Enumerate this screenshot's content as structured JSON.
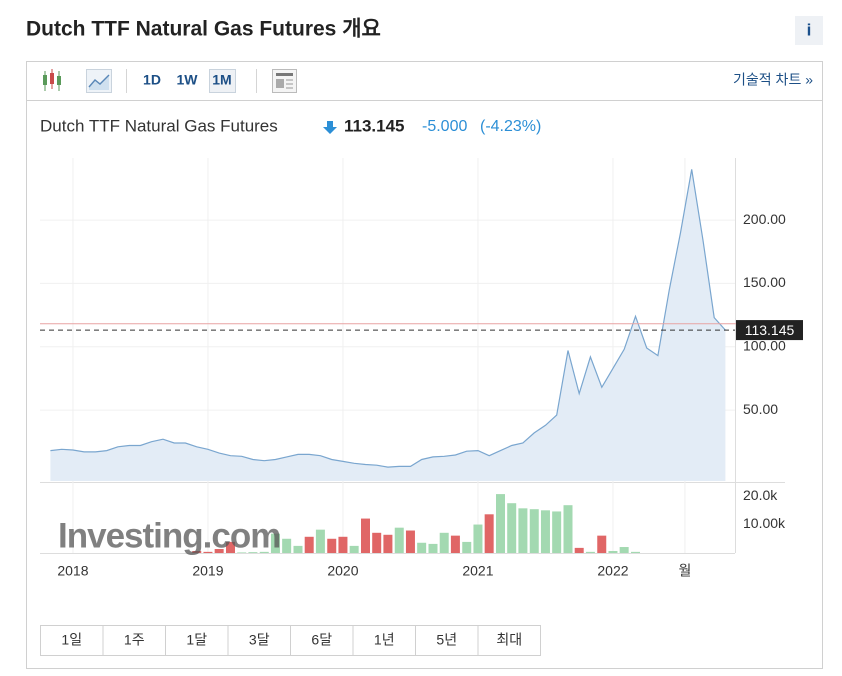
{
  "header": {
    "title": "Dutch TTF Natural Gas Futures 개요",
    "info": "i"
  },
  "toolbar": {
    "intervals": [
      "1D",
      "1W",
      "1M"
    ],
    "active_interval": 2,
    "link": "기술적 차트 »"
  },
  "quote": {
    "name": "Dutch TTF Natural Gas Futures",
    "price": 113.145,
    "change": "-5.000",
    "change_pct": "(-4.23%)"
  },
  "watermark": "Investing.com",
  "chart_data": {
    "type": "line",
    "x": [
      2017.833,
      2017.917,
      2018,
      2018.083,
      2018.167,
      2018.25,
      2018.333,
      2018.417,
      2018.5,
      2018.583,
      2018.667,
      2018.75,
      2018.833,
      2018.917,
      2019,
      2019.083,
      2019.167,
      2019.25,
      2019.333,
      2019.417,
      2019.5,
      2019.583,
      2019.667,
      2019.75,
      2019.833,
      2019.917,
      2020,
      2020.083,
      2020.167,
      2020.25,
      2020.333,
      2020.417,
      2020.5,
      2020.583,
      2020.667,
      2020.75,
      2020.833,
      2020.917,
      2021,
      2021.083,
      2021.167,
      2021.25,
      2021.333,
      2021.417,
      2021.5,
      2021.583,
      2021.667,
      2021.75,
      2021.833,
      2021.917,
      2022,
      2022.083,
      2022.167,
      2022.25,
      2022.333,
      2022.417,
      2022.5,
      2022.583,
      2022.667,
      2022.75,
      2022.833
    ],
    "xlim": [
      2017.756,
      2022.904
    ],
    "xticks": [
      2018,
      2019,
      2020,
      2021,
      2022,
      {
        "value": 2022.533,
        "label": "월"
      }
    ],
    "ylim": [
      -6,
      249
    ],
    "yticks": [
      {
        "value": 50,
        "label": "50.00"
      },
      {
        "value": 100,
        "label": "100.00"
      },
      {
        "value": 150,
        "label": "150.00"
      },
      {
        "value": 200,
        "label": "200.00"
      }
    ],
    "grid": true,
    "series": [
      {
        "color": "#7aa6cf",
        "fill": "#e3ecf6",
        "values": [
          18,
          19,
          18.5,
          17,
          17,
          18,
          21,
          22,
          22,
          25,
          27,
          24,
          24,
          21,
          19,
          16,
          14,
          13.5,
          11,
          10,
          11,
          13,
          15,
          15,
          14,
          11,
          9.5,
          8,
          7,
          6.5,
          5,
          5.5,
          5.5,
          11,
          13,
          13.5,
          14.5,
          17.5,
          18,
          14,
          18,
          22,
          24,
          32,
          38,
          46,
          97,
          63,
          92,
          68,
          83,
          98,
          124,
          99,
          93,
          145,
          190,
          240,
          184,
          123,
          113.145
        ]
      }
    ],
    "reference_line": {
      "value": 118.145,
      "color": "#e8a3a3"
    },
    "volume": {
      "type": "bar",
      "ylim": [
        0,
        24600
      ],
      "yticks": [
        {
          "value": 10000,
          "label": "10.00k"
        },
        {
          "value": 20000,
          "label": "20.0k"
        }
      ],
      "values": [
        null,
        null,
        null,
        null,
        null,
        null,
        null,
        null,
        null,
        null,
        null,
        null,
        null,
        700,
        400,
        1400,
        3900,
        200,
        300,
        400,
        6800,
        5000,
        2500,
        5700,
        8200,
        5000,
        5700,
        2500,
        12100,
        7100,
        6400,
        8900,
        7900,
        3600,
        3200,
        7100,
        6100,
        3900,
        10000,
        13600,
        20700,
        17500,
        15700,
        15400,
        15000,
        14600,
        16800,
        1800,
        400,
        6100,
        700,
        2100,
        400,
        null,
        null,
        null,
        null,
        null,
        null,
        null,
        null
      ],
      "colors": [
        null,
        null,
        null,
        null,
        null,
        null,
        null,
        null,
        null,
        null,
        null,
        null,
        null,
        "#e06666",
        "#e06666",
        "#e06666",
        "#e06666",
        "#a3d9b1",
        "#a3d9b1",
        "#a3d9b1",
        "#a3d9b1",
        "#a3d9b1",
        "#a3d9b1",
        "#e06666",
        "#a3d9b1",
        "#e06666",
        "#e06666",
        "#a3d9b1",
        "#e06666",
        "#e06666",
        "#e06666",
        "#a3d9b1",
        "#e06666",
        "#a3d9b1",
        "#a3d9b1",
        "#a3d9b1",
        "#e06666",
        "#a3d9b1",
        "#a3d9b1",
        "#e06666",
        "#a3d9b1",
        "#a3d9b1",
        "#a3d9b1",
        "#a3d9b1",
        "#a3d9b1",
        "#a3d9b1",
        "#a3d9b1",
        "#e06666",
        "#a3d9b1",
        "#e06666",
        "#a3d9b1",
        "#a3d9b1",
        "#a3d9b1",
        null,
        null,
        null,
        null,
        null,
        null,
        null,
        null
      ]
    }
  },
  "range_buttons": [
    "1일",
    "1주",
    "1달",
    "3달",
    "6달",
    "1년",
    "5년",
    "최대"
  ]
}
